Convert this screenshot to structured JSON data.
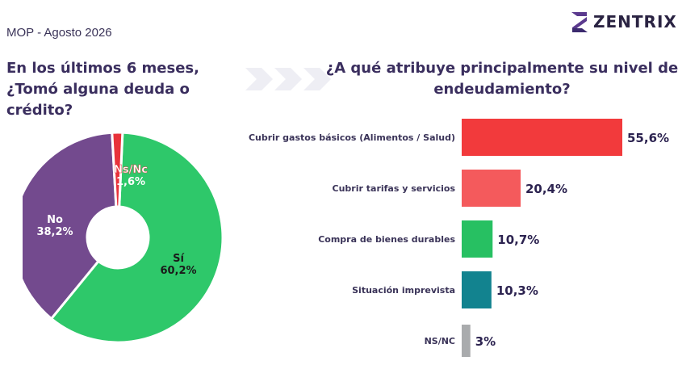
{
  "header": {
    "subtitle": "MOP - Agosto 2026",
    "brand": "ZENTRIX",
    "brand_color": "#3b2a6e"
  },
  "question_left": "En los últimos 6 meses, ¿Tomó alguna deuda o crédito?",
  "question_right": "¿A qué atribuye principalmente su nivel de endeudamiento?",
  "chart_data": [
    {
      "type": "pie",
      "donut": true,
      "slices": [
        {
          "label": "Sí",
          "value": 60.2,
          "value_label": "60,2%",
          "color": "#2ec86a"
        },
        {
          "label": "No",
          "value": 38.2,
          "value_label": "38,2%",
          "color": "#734a8e"
        },
        {
          "label": "Ns/Nc",
          "value": 1.6,
          "value_label": "1,6%",
          "color": "#e8323a"
        }
      ]
    },
    {
      "type": "bar",
      "orientation": "horizontal",
      "categories": [
        "Cubrir gastos básicos (Alimentos / Salud)",
        "Cubrir tarifas y servicios",
        "Compra de bienes durables",
        "Situación imprevista",
        "NS/NC"
      ],
      "values": [
        55.6,
        20.4,
        10.7,
        10.3,
        3
      ],
      "value_labels": [
        "55,6%",
        "20,4%",
        "10,7%",
        "10,3%",
        "3%"
      ],
      "colors": [
        "#f23a3c",
        "#f45a5c",
        "#27c062",
        "#12838f",
        "#a9abad"
      ],
      "xlim": [
        0,
        55.6
      ]
    }
  ]
}
